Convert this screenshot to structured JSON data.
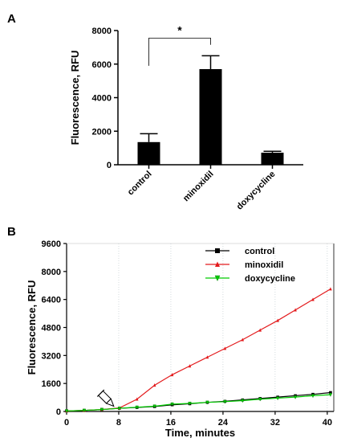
{
  "chart_data": [
    {
      "type": "bar",
      "panel_label": "A",
      "categories": [
        "control",
        "minoxidil",
        "doxycycline"
      ],
      "values": [
        1350,
        5700,
        720
      ],
      "errors": [
        500,
        800,
        80
      ],
      "ylabel": "Fluorescence, RFU",
      "ylim": [
        0,
        8000
      ],
      "yticks": [
        "0",
        "2000",
        "4000",
        "6000",
        "8000"
      ],
      "significance": {
        "from": 0,
        "to": 1,
        "label": "*"
      },
      "bar_color": "#000000"
    },
    {
      "type": "line",
      "panel_label": "B",
      "xlabel": "Time, minutes",
      "ylabel": "Fluorescence, RFU",
      "xlim": [
        0,
        41
      ],
      "ylim": [
        0,
        9600
      ],
      "xticks": [
        "0",
        "8",
        "16",
        "24",
        "32",
        "40"
      ],
      "yticks": [
        "0",
        "1600",
        "3200",
        "4800",
        "6400",
        "8000",
        "9600"
      ],
      "grid": "vertical",
      "legend": "top-right",
      "injection_marker_x": 7.5,
      "x": [
        0,
        2.7,
        5.4,
        8.1,
        10.8,
        13.5,
        16.2,
        18.9,
        21.6,
        24.3,
        27,
        29.7,
        32.4,
        35.1,
        37.8,
        40.5
      ],
      "series": [
        {
          "name": "control",
          "color": "#000000",
          "marker": "square",
          "values": [
            30,
            60,
            110,
            180,
            230,
            280,
            380,
            440,
            520,
            580,
            660,
            740,
            820,
            900,
            980,
            1080
          ]
        },
        {
          "name": "minoxidil",
          "color": "#e31a1c",
          "marker": "triangle-up",
          "values": [
            30,
            60,
            110,
            200,
            700,
            1500,
            2100,
            2600,
            3100,
            3600,
            4100,
            4650,
            5200,
            5800,
            6400,
            7000
          ]
        },
        {
          "name": "doxycycline",
          "color": "#00cc00",
          "marker": "triangle-down",
          "values": [
            30,
            60,
            110,
            180,
            240,
            300,
            420,
            460,
            520,
            560,
            620,
            700,
            760,
            820,
            900,
            960
          ]
        }
      ]
    }
  ]
}
